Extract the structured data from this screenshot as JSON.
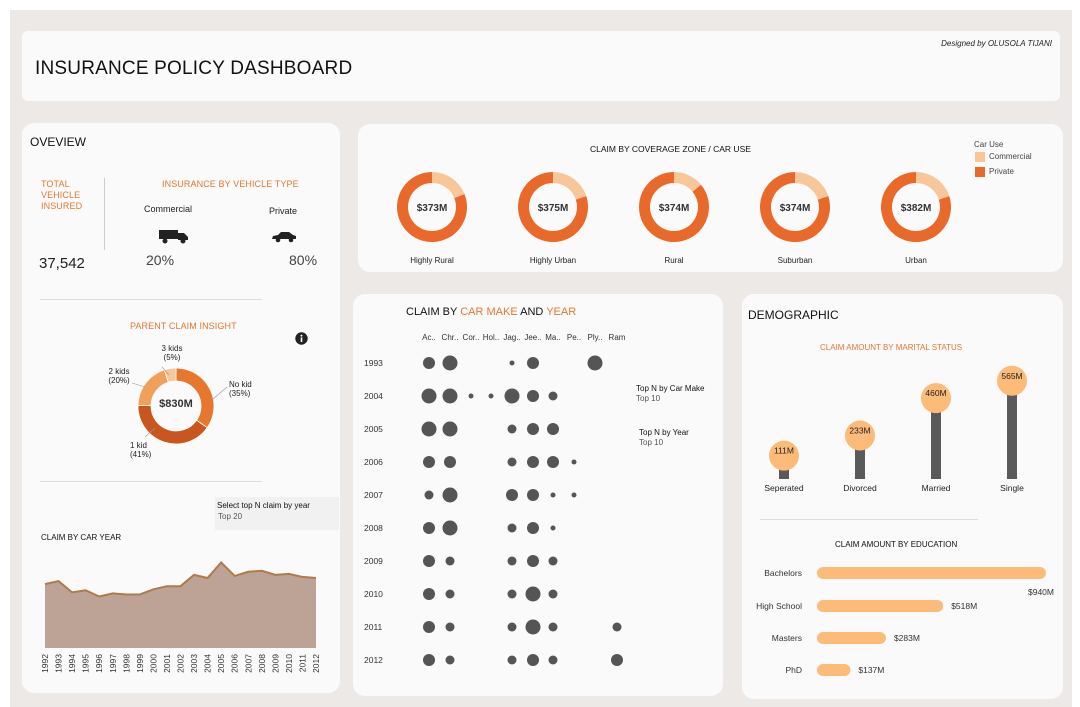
{
  "header": {
    "title": "INSURANCE POLICY DASHBOARD",
    "credit": "Designed by OLUSOLA TIJANI"
  },
  "overview": {
    "title": "OVEVIEW",
    "total_label": "TOTAL\nVEHICLE\nINSURED",
    "total_value": "37,542",
    "vehicle_type_title": "INSURANCE BY VEHICLE TYPE",
    "commercial_label": "Commercial",
    "private_label": "Private",
    "commercial_pct": "20%",
    "private_pct": "80%",
    "parent_title": "PARENT CLAIM INSIGHT",
    "parent_center": "$830M",
    "info_icon": "info-icon",
    "slices": [
      {
        "label": "No kid",
        "pct": "(35%)",
        "value": 35,
        "color": "#e8772e"
      },
      {
        "label": "1 kid",
        "pct": "(41%)",
        "value": 41,
        "color": "#c8561e"
      },
      {
        "label": "2 kids",
        "pct": "(20%)",
        "value": 20,
        "color": "#f0a05a"
      },
      {
        "label": "3 kids",
        "pct": "(5%)",
        "value": 5,
        "color": "#f7c79a"
      }
    ],
    "select_label": "Select top N claim by year",
    "select_value": "Top 20",
    "car_year_title": "CLAIM BY CAR YEAR"
  },
  "zone": {
    "title": "CLAIM BY COVERAGE ZONE / CAR USE",
    "legend_title": "Car Use",
    "legend": [
      {
        "label": "Commercial",
        "color": "#f7c79a"
      },
      {
        "label": "Private",
        "color": "#e8692a"
      }
    ],
    "donuts": [
      {
        "label": "Highly Rural",
        "value": "$373M",
        "commercial_share": 0.19
      },
      {
        "label": "Highly Urban",
        "value": "$375M",
        "commercial_share": 0.2
      },
      {
        "label": "Rural",
        "value": "$374M",
        "commercial_share": 0.14
      },
      {
        "label": "Suburban",
        "value": "$374M",
        "commercial_share": 0.2
      },
      {
        "label": "Urban",
        "value": "$382M",
        "commercial_share": 0.2
      }
    ]
  },
  "make": {
    "title_parts": [
      "CLAIM BY ",
      "CAR MAKE",
      " AND ",
      "YEAR"
    ],
    "columns": [
      "Ac..",
      "Chr..",
      "Cor..",
      "Hol..",
      "Jag..",
      "Jee..",
      "Ma..",
      "Pe..",
      "Ply..",
      "Ram"
    ],
    "filter1_label": "Top N by Car Make",
    "filter1_value": "Top 10",
    "filter2_label": "Top N by Year",
    "filter2_value": "Top 10"
  },
  "demo": {
    "title": "DEMOGRAPHIC",
    "marital_title": "CLAIM AMOUNT BY MARITAL STATUS",
    "education_title": "CLAIM AMOUNT BY EDUCATION"
  },
  "chart_data": [
    {
      "type": "area",
      "title": "CLAIM BY CAR YEAR",
      "x": [
        "1992",
        "1993",
        "1994",
        "1995",
        "1996",
        "1997",
        "1998",
        "1999",
        "2000",
        "2001",
        "2002",
        "2003",
        "2004",
        "2005",
        "2006",
        "2007",
        "2008",
        "2009",
        "2010",
        "2011",
        "2012"
      ],
      "values": [
        62,
        65,
        54,
        56,
        50,
        53,
        52,
        52,
        57,
        60,
        60,
        71,
        68,
        83,
        70,
        74,
        75,
        71,
        72,
        69,
        68
      ],
      "ylim": [
        0,
        100
      ]
    },
    {
      "type": "scatter",
      "title": "CLAIM BY CAR MAKE AND YEAR",
      "rows": [
        "1993",
        "2004",
        "2005",
        "2006",
        "2007",
        "2008",
        "2009",
        "2010",
        "2011",
        "2012"
      ],
      "columns": [
        "Ac..",
        "Chr..",
        "Cor..",
        "Hol..",
        "Jag..",
        "Jee..",
        "Ma..",
        "Pe..",
        "Ply..",
        "Ram"
      ],
      "sizes": [
        [
          3,
          4,
          0,
          0,
          1,
          3,
          0,
          0,
          4,
          0
        ],
        [
          4,
          4,
          1,
          1,
          4,
          3,
          2,
          0,
          0,
          0
        ],
        [
          4,
          4,
          0,
          0,
          2,
          3,
          3,
          0,
          0,
          0
        ],
        [
          3,
          3,
          0,
          0,
          2,
          3,
          3,
          1,
          0,
          0
        ],
        [
          2,
          4,
          0,
          0,
          3,
          3,
          1,
          1,
          0,
          0
        ],
        [
          3,
          4,
          0,
          0,
          2,
          3,
          1,
          0,
          0,
          0
        ],
        [
          3,
          2,
          0,
          0,
          2,
          3,
          2,
          0,
          0,
          0
        ],
        [
          3,
          2,
          0,
          0,
          2,
          4,
          2,
          0,
          0,
          0
        ],
        [
          3,
          2,
          0,
          0,
          2,
          4,
          2,
          0,
          0,
          2
        ],
        [
          3,
          2,
          0,
          0,
          2,
          3,
          2,
          0,
          0,
          3
        ]
      ]
    },
    {
      "type": "bar",
      "title": "CLAIM AMOUNT BY MARITAL STATUS",
      "categories": [
        "Seperated",
        "Divorced",
        "Married",
        "Single"
      ],
      "values": [
        111,
        233,
        460,
        565
      ],
      "labels": [
        "111M",
        "233M",
        "460M",
        "565M"
      ],
      "ylim": [
        0,
        600
      ]
    },
    {
      "type": "bar",
      "title": "CLAIM AMOUNT BY EDUCATION",
      "categories": [
        "Bachelors",
        "High School",
        "Masters",
        "PhD"
      ],
      "values": [
        940,
        518,
        283,
        137
      ],
      "labels": [
        "$940M",
        "$518M",
        "$283M",
        "$137M"
      ],
      "xlim": [
        0,
        960
      ]
    }
  ]
}
